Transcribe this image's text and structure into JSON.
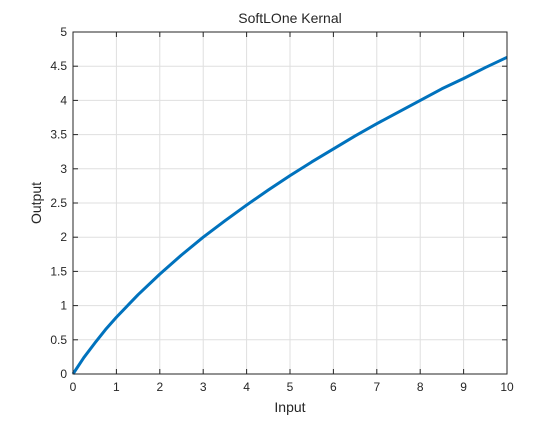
{
  "chart_data": {
    "type": "line",
    "title": "SoftLOne Kernal",
    "xlabel": "Input",
    "ylabel": "Output",
    "xlim": [
      0,
      10
    ],
    "ylim": [
      0,
      5
    ],
    "xticks": [
      0,
      1,
      2,
      3,
      4,
      5,
      6,
      7,
      8,
      9,
      10
    ],
    "yticks": [
      0,
      0.5,
      1,
      1.5,
      2,
      2.5,
      3,
      3.5,
      4,
      4.5,
      5
    ],
    "xtick_labels": [
      "0",
      "1",
      "2",
      "3",
      "4",
      "5",
      "6",
      "7",
      "8",
      "9",
      "10"
    ],
    "ytick_labels": [
      "0",
      "0.5",
      "1",
      "1.5",
      "2",
      "2.5",
      "3",
      "3.5",
      "4",
      "4.5",
      "5"
    ],
    "grid": true,
    "series": [
      {
        "color": "#0072BD",
        "x": [
          0,
          0.25,
          0.5,
          0.75,
          1,
          1.5,
          2,
          2.5,
          3,
          3.5,
          4,
          4.5,
          5,
          5.5,
          6,
          6.5,
          7,
          7.5,
          8,
          8.5,
          9,
          9.5,
          10
        ],
        "y": [
          0,
          0.24,
          0.45,
          0.65,
          0.83,
          1.16,
          1.46,
          1.74,
          2.0,
          2.24,
          2.47,
          2.69,
          2.9,
          3.1,
          3.29,
          3.48,
          3.66,
          3.83,
          4.0,
          4.17,
          4.32,
          4.48,
          4.63
        ]
      }
    ]
  }
}
